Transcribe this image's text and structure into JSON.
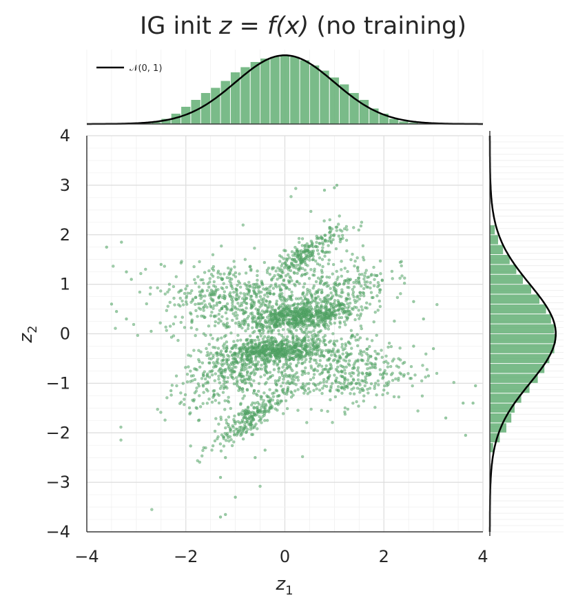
{
  "title": {
    "prefix": "IG init  ",
    "math": "z = f(x)",
    "suffix": "  (no training)"
  },
  "chart_data": {
    "type": "scatter",
    "xlabel": "z1",
    "ylabel": "z2",
    "xlim": [
      -4,
      4
    ],
    "ylim": [
      -4,
      4
    ],
    "x_ticks": [
      "−4",
      "−2",
      "0",
      "2",
      "4"
    ],
    "y_ticks": [
      "−4",
      "−3",
      "−2",
      "−1",
      "0",
      "1",
      "2",
      "3",
      "4"
    ],
    "grid": true,
    "point_color": "#55a868",
    "line_color": "#000000",
    "legend": {
      "label": "𝒩(0, 1)",
      "placement": "top-left"
    },
    "clusters": [
      {
        "center": [
          0.3,
          0.35
        ],
        "sx": 0.55,
        "sy": 0.12,
        "rho": 0.35,
        "n": 520
      },
      {
        "center": [
          -0.3,
          -0.35
        ],
        "sx": 0.55,
        "sy": 0.12,
        "rho": 0.35,
        "n": 520
      },
      {
        "center": [
          0.45,
          1.6
        ],
        "sx": 0.4,
        "sy": 0.3,
        "rho": 0.85,
        "n": 260
      },
      {
        "center": [
          -0.7,
          -1.7
        ],
        "sx": 0.4,
        "sy": 0.3,
        "rho": 0.85,
        "n": 260
      },
      {
        "center": [
          -1.1,
          0.75
        ],
        "sx": 0.7,
        "sy": 0.35,
        "rho": 0.1,
        "n": 420
      },
      {
        "center": [
          1.1,
          -0.75
        ],
        "sx": 0.7,
        "sy": 0.35,
        "rho": 0.1,
        "n": 420
      },
      {
        "center": [
          1.0,
          0.8
        ],
        "sx": 0.55,
        "sy": 0.35,
        "rho": 0.45,
        "n": 320
      },
      {
        "center": [
          -1.0,
          -0.8
        ],
        "sx": 0.55,
        "sy": 0.35,
        "rho": 0.45,
        "n": 320
      },
      {
        "center": [
          -0.3,
          0.2
        ],
        "sx": 0.3,
        "sy": 0.4,
        "rho": 0.6,
        "n": 120
      },
      {
        "center": [
          0.3,
          -0.2
        ],
        "sx": 0.3,
        "sy": 0.4,
        "rho": 0.6,
        "n": 120
      },
      {
        "center": [
          0.0,
          0.0
        ],
        "sx": 1.2,
        "sy": 1.1,
        "rho": 0.3,
        "n": 140
      }
    ],
    "outliers": [
      [
        -3.6,
        1.75
      ],
      [
        -3.3,
        1.85
      ],
      [
        -3.2,
        1.25
      ],
      [
        -3.1,
        1.1
      ],
      [
        -3.5,
        0.6
      ],
      [
        -3.4,
        0.45
      ],
      [
        -3.2,
        0.3
      ],
      [
        -2.7,
        0.05
      ],
      [
        -2.5,
        1.4
      ],
      [
        -1.2,
        -2.5
      ],
      [
        -1.3,
        -2.9
      ],
      [
        -1.0,
        -3.3
      ],
      [
        -1.3,
        -3.7
      ],
      [
        -1.2,
        -3.65
      ],
      [
        1.0,
        2.95
      ],
      [
        1.05,
        3.0
      ],
      [
        0.8,
        2.9
      ],
      [
        2.6,
        0.65
      ],
      [
        2.8,
        0.3
      ],
      [
        3.0,
        -0.3
      ],
      [
        3.6,
        -1.4
      ],
      [
        3.8,
        -1.4
      ],
      [
        3.85,
        -1.05
      ],
      [
        3.65,
        -2.05
      ],
      [
        3.25,
        -1.7
      ],
      [
        2.9,
        -0.85
      ],
      [
        2.6,
        -0.25
      ],
      [
        -0.6,
        -2.5
      ],
      [
        -0.4,
        -2.35
      ],
      [
        -2.3,
        -1.15
      ]
    ],
    "top_hist": {
      "bins": [
        -2.8,
        -2.6,
        -2.4,
        -2.2,
        -2.0,
        -1.8,
        -1.6,
        -1.4,
        -1.2,
        -1.0,
        -0.8,
        -0.6,
        -0.4,
        -0.2,
        0.0,
        0.2,
        0.4,
        0.6,
        0.8,
        1.0,
        1.2,
        1.4,
        1.6,
        1.8,
        2.0,
        2.2,
        2.4,
        2.6,
        2.8
      ],
      "density": [
        0.005,
        0.01,
        0.03,
        0.06,
        0.1,
        0.14,
        0.18,
        0.21,
        0.25,
        0.3,
        0.33,
        0.36,
        0.38,
        0.39,
        0.4,
        0.39,
        0.37,
        0.34,
        0.31,
        0.27,
        0.23,
        0.18,
        0.14,
        0.09,
        0.06,
        0.03,
        0.015,
        0.008,
        0.003
      ]
    },
    "right_hist": {
      "bins": [
        -2.3,
        -2.1,
        -1.9,
        -1.7,
        -1.5,
        -1.3,
        -1.1,
        -0.9,
        -0.7,
        -0.5,
        -0.3,
        -0.1,
        0.1,
        0.3,
        0.5,
        0.7,
        0.9,
        1.1,
        1.3,
        1.5,
        1.7,
        1.9,
        2.1
      ],
      "density": [
        0.02,
        0.06,
        0.1,
        0.13,
        0.15,
        0.19,
        0.24,
        0.29,
        0.33,
        0.36,
        0.39,
        0.4,
        0.39,
        0.37,
        0.34,
        0.3,
        0.25,
        0.2,
        0.16,
        0.12,
        0.08,
        0.05,
        0.03
      ]
    }
  }
}
